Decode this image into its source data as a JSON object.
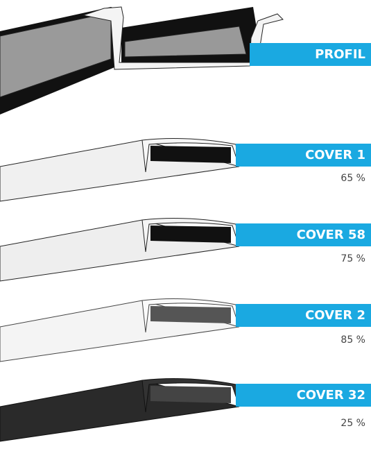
{
  "items": [
    {
      "label": "PROFIL"
    },
    {
      "label": "COVER 1",
      "percentage": "65 %"
    },
    {
      "label": "COVER 58",
      "percentage": "75 %"
    },
    {
      "label": "COVER 2",
      "percentage": "85 %"
    },
    {
      "label": "COVER 32",
      "percentage": "25 %"
    }
  ]
}
